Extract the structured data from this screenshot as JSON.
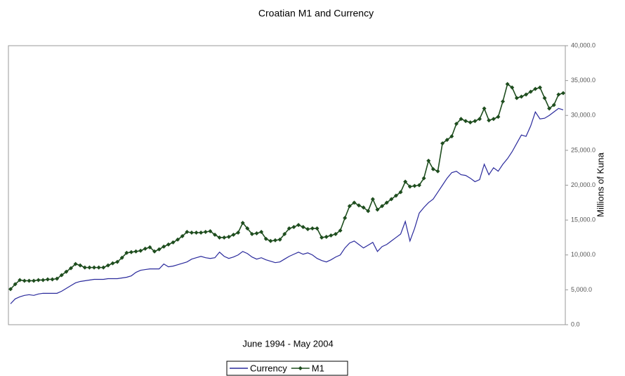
{
  "chart_data": {
    "type": "line",
    "title": "Croatian M1 and Currency",
    "x_label": "June 1994 - May 2004",
    "y_label": "Millions of Kuna",
    "ylim": [
      0,
      40000
    ],
    "yticks": [
      {
        "value": 0,
        "label": "0.0"
      },
      {
        "value": 5000,
        "label": "5,000.0"
      },
      {
        "value": 10000,
        "label": "10,000.0"
      },
      {
        "value": 15000,
        "label": "15,000.0"
      },
      {
        "value": 20000,
        "label": "20,000.0"
      },
      {
        "value": 25000,
        "label": "25,000.0"
      },
      {
        "value": 30000,
        "label": "30,000.0"
      },
      {
        "value": 35000,
        "label": "35,000.0"
      },
      {
        "value": 40000,
        "label": "40,000.0"
      }
    ],
    "series": [
      {
        "name": "Currency",
        "color": "#2a2a9c",
        "values": [
          3000,
          3700,
          4000,
          4200,
          4300,
          4200,
          4400,
          4500,
          4500,
          4500,
          4500,
          4800,
          5200,
          5600,
          6000,
          6200,
          6300,
          6400,
          6500,
          6500,
          6500,
          6600,
          6600,
          6600,
          6700,
          6800,
          7000,
          7500,
          7800,
          7900,
          8000,
          8000,
          8000,
          8700,
          8300,
          8400,
          8600,
          8800,
          9000,
          9400,
          9600,
          9800,
          9600,
          9500,
          9600,
          10400,
          9800,
          9500,
          9700,
          10000,
          10500,
          10200,
          9700,
          9400,
          9600,
          9300,
          9100,
          8900,
          9000,
          9400,
          9800,
          10100,
          10400,
          10100,
          10300,
          10000,
          9500,
          9200,
          9000,
          9300,
          9700,
          10000,
          11000,
          11700,
          12000,
          11500,
          11000,
          11400,
          11800,
          10500,
          11200,
          11500,
          12000,
          12500,
          13000,
          14800,
          12000,
          13800,
          16000,
          16800,
          17500,
          18000,
          19000,
          20000,
          21000,
          21800,
          22000,
          21500,
          21400,
          21000,
          20500,
          20800,
          23000,
          21500,
          22500,
          22000,
          23000,
          23800,
          24800,
          26000,
          27200,
          27000,
          28500,
          30500,
          29500,
          29600,
          30000,
          30500,
          31000,
          30800
        ]
      },
      {
        "name": "M1",
        "color": "#1e4d1e",
        "values": [
          5100,
          5800,
          6400,
          6300,
          6300,
          6300,
          6400,
          6400,
          6500,
          6500,
          6600,
          7100,
          7600,
          8100,
          8700,
          8500,
          8200,
          8200,
          8200,
          8200,
          8200,
          8500,
          8800,
          9000,
          9600,
          10300,
          10400,
          10500,
          10600,
          10900,
          11100,
          10500,
          10800,
          11200,
          11500,
          11800,
          12200,
          12700,
          13300,
          13200,
          13200,
          13200,
          13300,
          13400,
          12900,
          12500,
          12500,
          12600,
          12900,
          13200,
          14600,
          13800,
          13000,
          13100,
          13300,
          12300,
          12000,
          12100,
          12200,
          13000,
          13800,
          14000,
          14300,
          14000,
          13700,
          13800,
          13800,
          12500,
          12600,
          12800,
          13000,
          13500,
          15300,
          17000,
          17500,
          17100,
          16800,
          16300,
          18000,
          16500,
          17000,
          17500,
          18000,
          18500,
          19000,
          20500,
          19800,
          19900,
          20000,
          21000,
          23500,
          22300,
          22000,
          26000,
          26500,
          27000,
          28800,
          29500,
          29200,
          29000,
          29200,
          29500,
          31000,
          29300,
          29500,
          29800,
          32000,
          34500,
          34000,
          32500,
          32700,
          33000,
          33400,
          33800,
          34000,
          32500,
          31000,
          31500,
          33000,
          33200
        ]
      }
    ]
  }
}
